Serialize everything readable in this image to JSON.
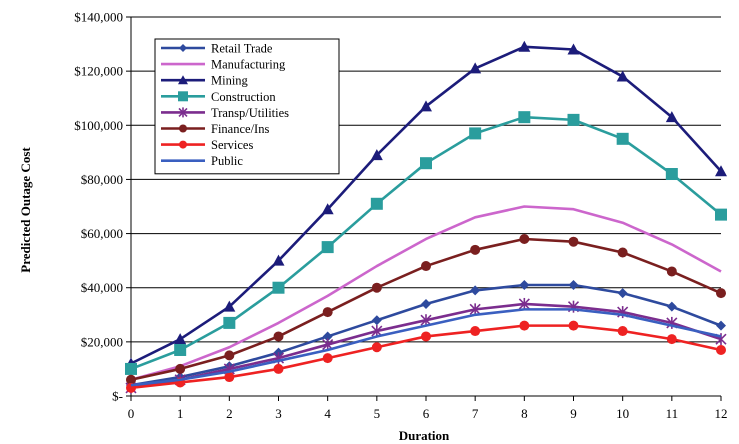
{
  "chart_data": {
    "type": "line",
    "title": "",
    "xlabel": "Duration",
    "ylabel": "Predicted Outage Cost",
    "x": [
      0,
      1,
      2,
      3,
      4,
      5,
      6,
      7,
      8,
      9,
      10,
      11,
      12
    ],
    "ylim": [
      0,
      140000
    ],
    "yticks": [
      {
        "value": 0,
        "label": "$-"
      },
      {
        "value": 20000,
        "label": "$20,000"
      },
      {
        "value": 40000,
        "label": "$40,000"
      },
      {
        "value": 60000,
        "label": "$60,000"
      },
      {
        "value": 80000,
        "label": "$80,000"
      },
      {
        "value": 100000,
        "label": "$100,000"
      },
      {
        "value": 120000,
        "label": "$120,000"
      },
      {
        "value": 140000,
        "label": "$140,000"
      }
    ],
    "grid": true,
    "legend_position": "top-left",
    "series": [
      {
        "name": "Retail Trade",
        "color": "#2e4a9e",
        "marker": "diamond",
        "values": [
          4000,
          7000,
          11000,
          16000,
          22000,
          28000,
          34000,
          39000,
          41000,
          41000,
          38000,
          33000,
          26000
        ]
      },
      {
        "name": "Manufacturing",
        "color": "#cc66cc",
        "marker": "none",
        "values": [
          6000,
          11000,
          18000,
          27000,
          37000,
          48000,
          58000,
          66000,
          70000,
          69000,
          64000,
          56000,
          46000
        ]
      },
      {
        "name": "Mining",
        "color": "#1c1c7a",
        "marker": "triangle",
        "values": [
          12000,
          21000,
          33000,
          50000,
          69000,
          89000,
          107000,
          121000,
          129000,
          128000,
          118000,
          103000,
          83000
        ]
      },
      {
        "name": "Construction",
        "color": "#2a9d9d",
        "marker": "square",
        "values": [
          10000,
          17000,
          27000,
          40000,
          55000,
          71000,
          86000,
          97000,
          103000,
          102000,
          95000,
          82000,
          67000
        ]
      },
      {
        "name": "Transp/Utilities",
        "color": "#7b2d8e",
        "marker": "star",
        "values": [
          3000,
          6000,
          10000,
          14000,
          19000,
          24000,
          28000,
          32000,
          34000,
          33000,
          31000,
          27000,
          21000
        ]
      },
      {
        "name": "Finance/Ins",
        "color": "#7a1f1f",
        "marker": "circle",
        "values": [
          6000,
          10000,
          15000,
          22000,
          31000,
          40000,
          48000,
          54000,
          58000,
          57000,
          53000,
          46000,
          38000
        ]
      },
      {
        "name": "Services",
        "color": "#ee2222",
        "marker": "circle",
        "values": [
          3000,
          5000,
          7000,
          10000,
          14000,
          18000,
          22000,
          24000,
          26000,
          26000,
          24000,
          21000,
          17000
        ]
      },
      {
        "name": "Public",
        "color": "#3a5fc0",
        "marker": "none",
        "values": [
          4000,
          6000,
          9000,
          13000,
          17000,
          22000,
          26000,
          30000,
          32000,
          32000,
          30000,
          26000,
          22000
        ]
      }
    ]
  }
}
